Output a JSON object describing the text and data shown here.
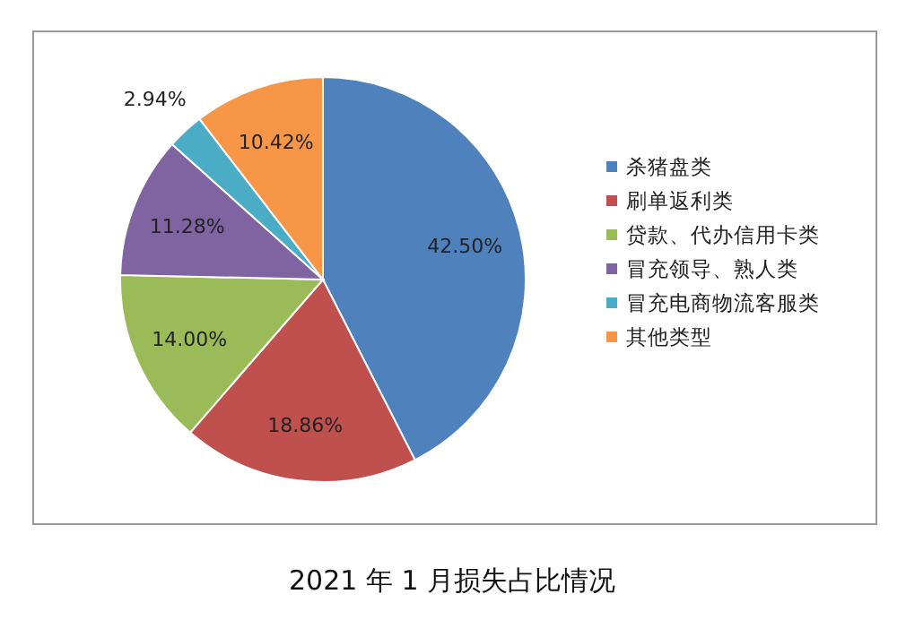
{
  "chart_data": {
    "type": "pie",
    "title": "2021 年 1 月损失占比情况",
    "categories": [
      "杀猪盘类",
      "刷单返利类",
      "贷款、代办信用卡类",
      "冒充领导、熟人类",
      "冒充电商物流客服类",
      "其他类型"
    ],
    "values": [
      42.5,
      18.86,
      14.0,
      11.28,
      2.94,
      10.42
    ],
    "colors": [
      "#4f81bd",
      "#c0504d",
      "#9bbb59",
      "#8064a2",
      "#4bacc6",
      "#f79646"
    ],
    "value_labels": [
      "42.50%",
      "18.86%",
      "14.00%",
      "11.28%",
      "2.94%",
      "10.42%"
    ],
    "legend": "right"
  }
}
